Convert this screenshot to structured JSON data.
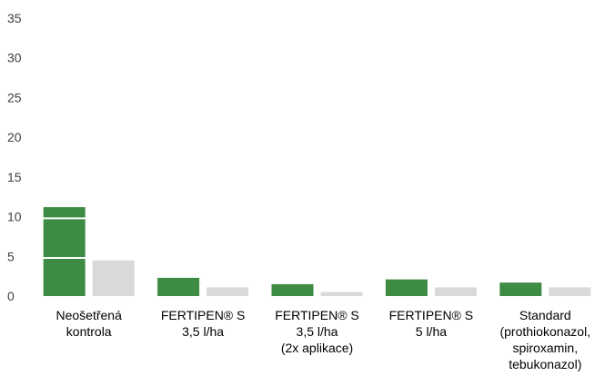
{
  "chart_data": {
    "type": "bar",
    "categories": [
      [
        "Neošetřená",
        "kontrola"
      ],
      [
        "FERTIPEN® S",
        "3,5 l/ha"
      ],
      [
        "FERTIPEN® S",
        "3,5 l/ha",
        "(2x aplikace)"
      ],
      [
        "FERTIPEN® S",
        "5 l/ha"
      ],
      [
        "Standard",
        "(prothiokonazol,",
        "spiroxamin,",
        "tebukonazol)"
      ]
    ],
    "series": [
      {
        "values": [
          11.2,
          2.3,
          1.5,
          2.1,
          1.7
        ],
        "color": "#3e8b43"
      },
      {
        "values": [
          4.5,
          1.1,
          0.5,
          1.1,
          1.1
        ],
        "color": "#d9d9d9"
      }
    ],
    "yticks": [
      "0",
      "5",
      "10",
      "15",
      "20",
      "25",
      "30",
      "35"
    ],
    "ylim": [
      0,
      35
    ],
    "grid": false,
    "gridlines_over_bars": [
      4.8,
      9.8
    ]
  }
}
